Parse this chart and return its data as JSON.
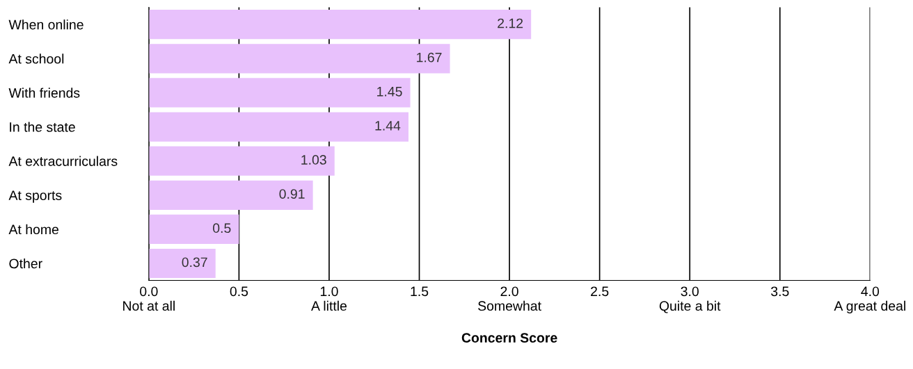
{
  "chart_data": {
    "type": "bar",
    "orientation": "horizontal",
    "xlabel": "Concern Score",
    "categories": [
      "When online",
      "At school",
      "With friends",
      "In the state",
      "At extracurriculars",
      "At sports",
      "At home",
      "Other"
    ],
    "values": [
      2.12,
      1.67,
      1.45,
      1.44,
      1.03,
      0.91,
      0.5,
      0.37
    ],
    "color": "#e8c1fc",
    "xlim": [
      0,
      4
    ],
    "xticks": [
      {
        "value": 0,
        "label": "0.0\nNot at all"
      },
      {
        "value": 0.5,
        "label": "0.5\n "
      },
      {
        "value": 1,
        "label": "1.0\nA little"
      },
      {
        "value": 1.5,
        "label": "1.5\n "
      },
      {
        "value": 2,
        "label": "2.0\nSomewhat"
      },
      {
        "value": 2.5,
        "label": "2.5\n "
      },
      {
        "value": 3,
        "label": "3.0\nQuite a bit"
      },
      {
        "value": 3.5,
        "label": "3.5\n "
      },
      {
        "value": 4,
        "label": "4.0\nA great deal"
      }
    ],
    "grid": "x",
    "data_labels": true
  }
}
